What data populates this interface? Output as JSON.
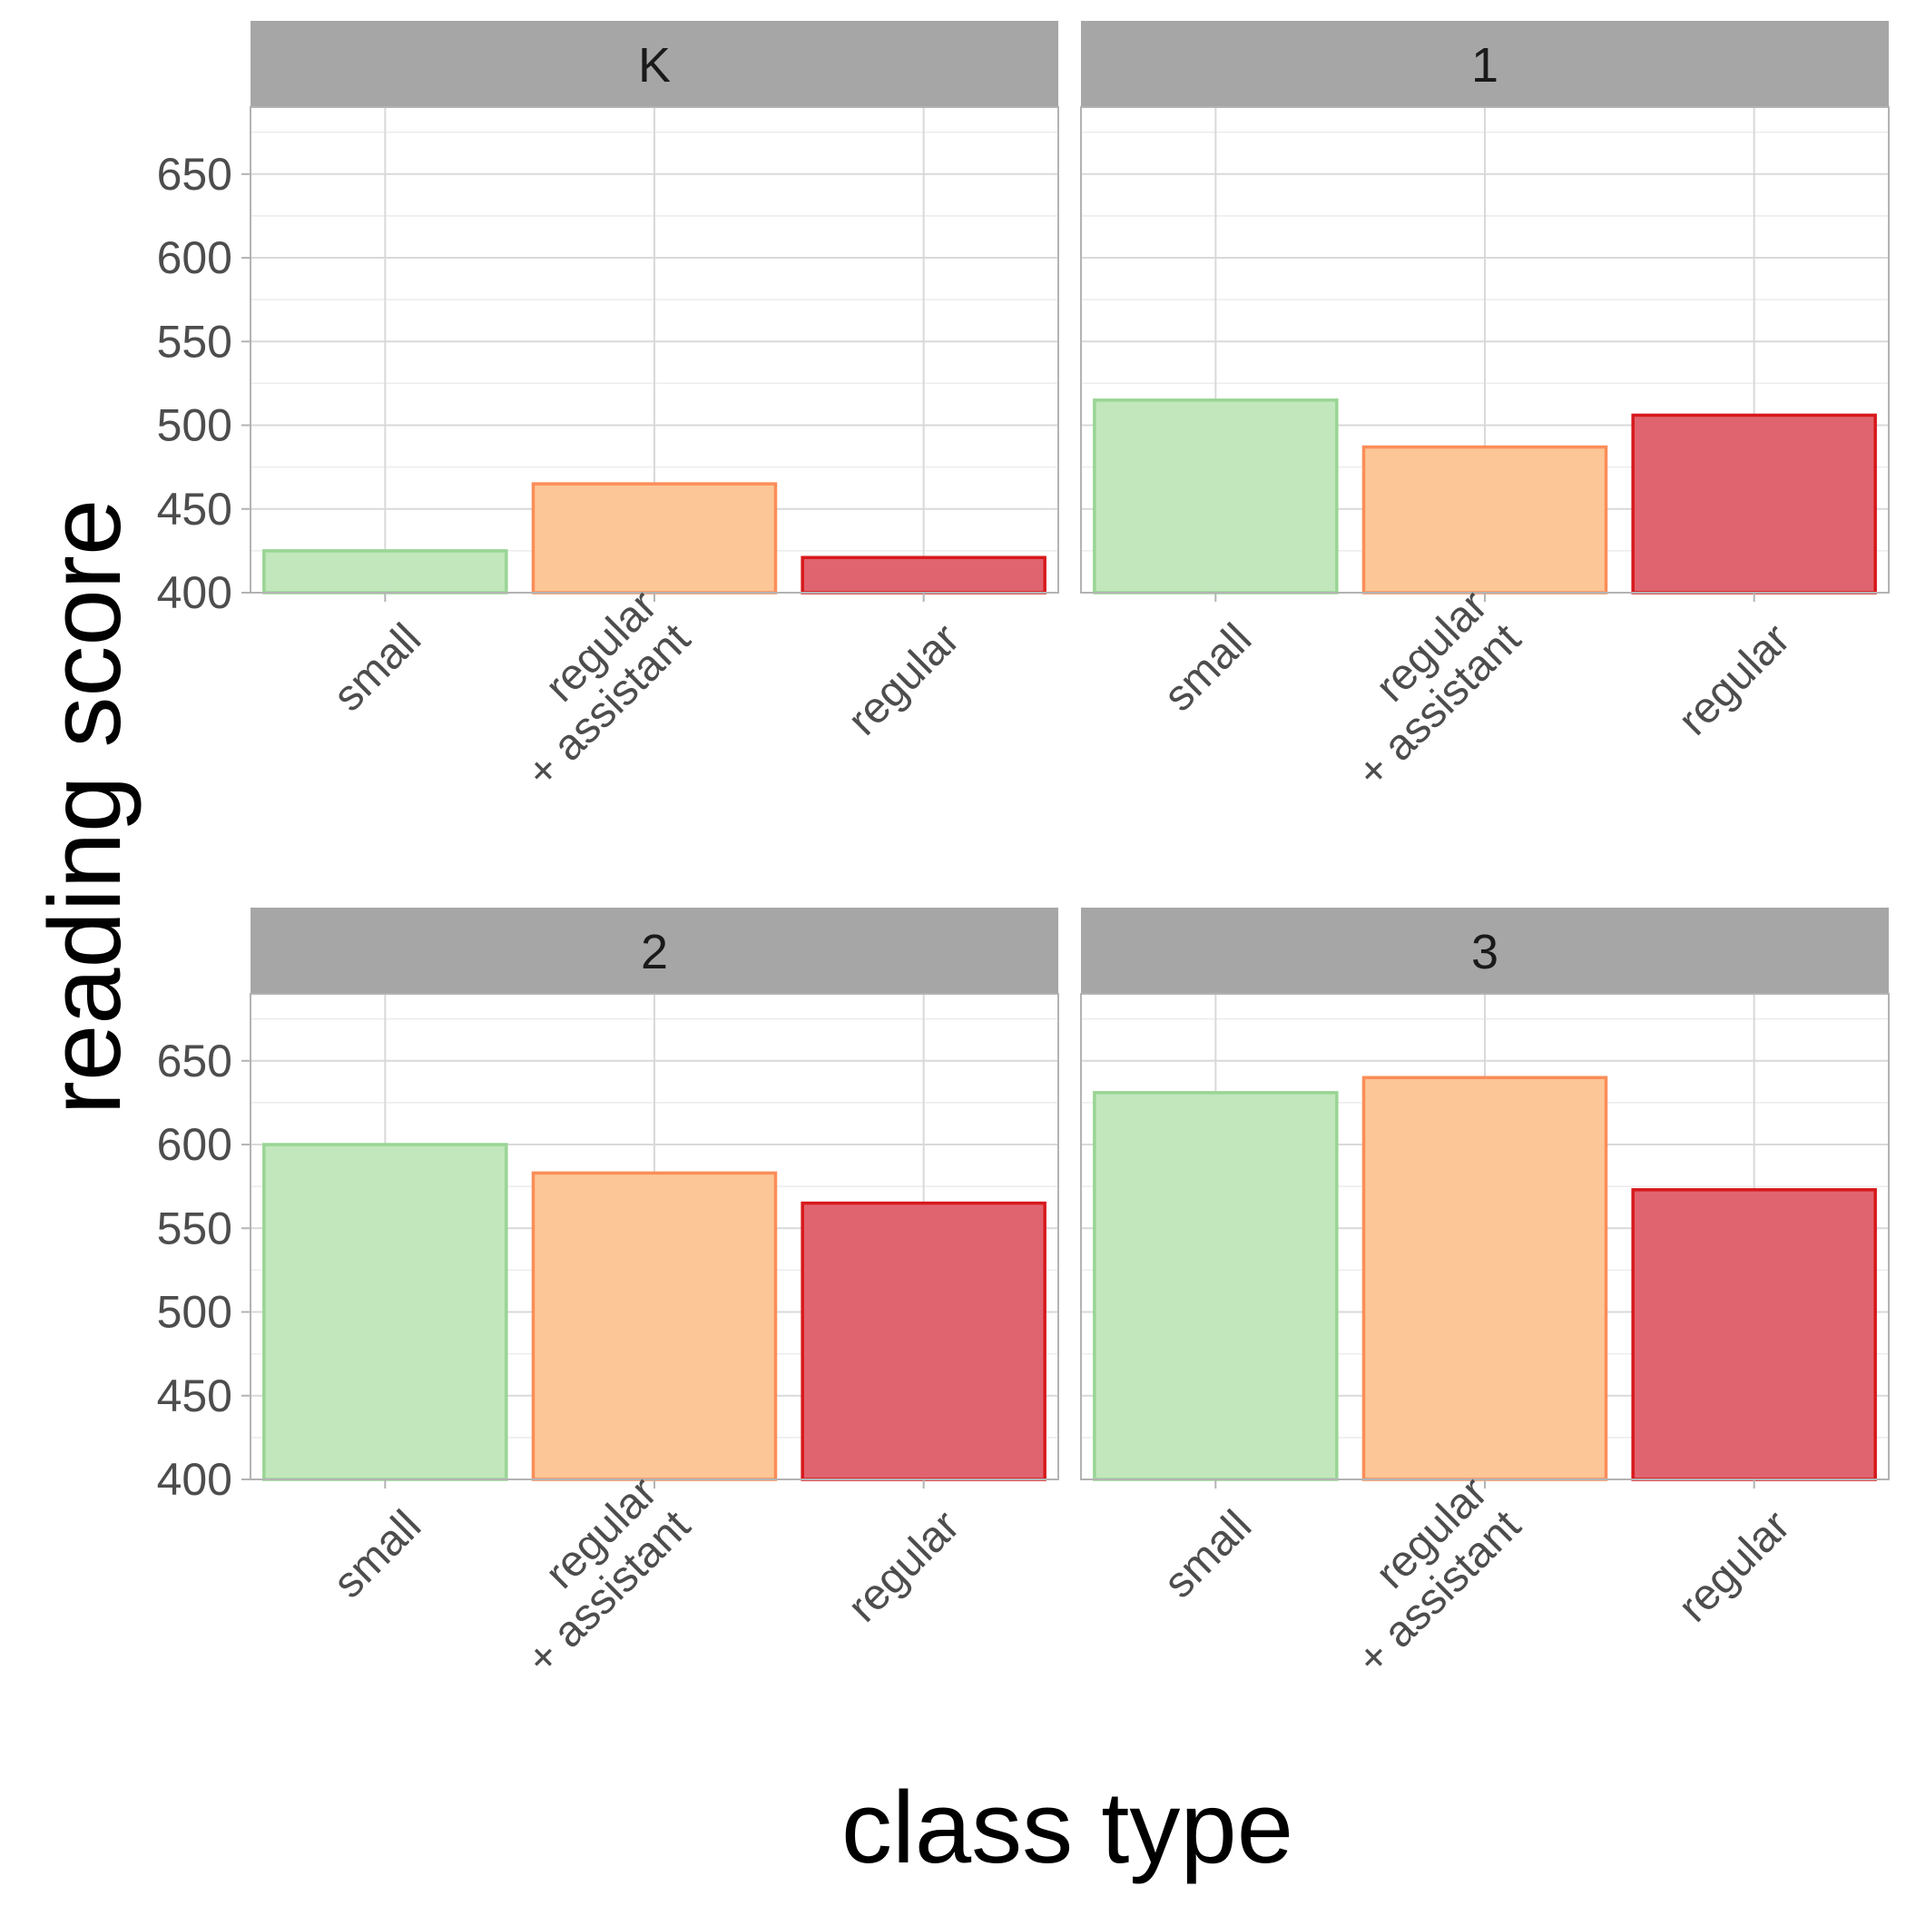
{
  "chart_data": {
    "type": "bar",
    "facet_by": "grade",
    "xlabel": "class type",
    "ylabel": "reading score",
    "ylim": [
      400,
      690
    ],
    "yticks": [
      400,
      450,
      500,
      550,
      600,
      650
    ],
    "categories": [
      "small",
      "regular\n+ assistant",
      "regular"
    ],
    "category_colors": {
      "fill": [
        "#c2e7bc",
        "#fcc696",
        "#e0646f"
      ],
      "stroke": [
        "#99d594",
        "#fc8d59",
        "#d7191c"
      ]
    },
    "strip_color": "#a6a6a6",
    "grid": true,
    "legend": "none",
    "panels": [
      {
        "title": "K",
        "values": [
          425,
          465,
          421
        ]
      },
      {
        "title": "1",
        "values": [
          515,
          487,
          506
        ]
      },
      {
        "title": "2",
        "values": [
          600,
          583,
          565
        ]
      },
      {
        "title": "3",
        "values": [
          631,
          640,
          573
        ]
      }
    ]
  }
}
